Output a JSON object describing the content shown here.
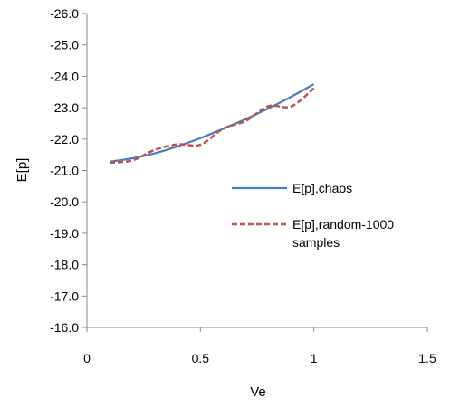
{
  "chart_data": {
    "type": "line",
    "xlabel": "Ve",
    "ylabel": "E[p]",
    "xlim": [
      0,
      1.5
    ],
    "ylim": [
      -26.0,
      -16.0
    ],
    "y_axis_reversed": true,
    "x_ticks": [
      "0",
      "0.5",
      "1",
      "1.5"
    ],
    "x_tick_values": [
      0,
      0.5,
      1,
      1.5
    ],
    "y_ticks": [
      "-26.0",
      "-25.0",
      "-24.0",
      "-23.0",
      "-22.0",
      "-21.0",
      "-20.0",
      "-19.0",
      "-18.0",
      "-17.0",
      "-16.0"
    ],
    "y_tick_values": [
      -26,
      -25,
      -24,
      -23,
      -22,
      -21,
      -20,
      -19,
      -18,
      -17,
      -16
    ],
    "grid": false,
    "legend_position": "right",
    "series": [
      {
        "name": "E[p],chaos",
        "color": "#4a7ebb",
        "style": "solid",
        "x": [
          0.1,
          0.2,
          0.3,
          0.4,
          0.5,
          0.6,
          0.7,
          0.8,
          0.9,
          1.0
        ],
        "y": [
          -21.28,
          -21.39,
          -21.55,
          -21.77,
          -22.03,
          -22.33,
          -22.64,
          -22.98,
          -23.35,
          -23.75
        ]
      },
      {
        "name": "E[p],random-1000 samples",
        "color": "#c0504d",
        "style": "dashed",
        "x": [
          0.1,
          0.2,
          0.3,
          0.4,
          0.5,
          0.6,
          0.7,
          0.8,
          0.9,
          1.0
        ],
        "y": [
          -21.25,
          -21.32,
          -21.66,
          -21.83,
          -21.82,
          -22.33,
          -22.58,
          -23.05,
          -23.04,
          -23.62
        ]
      }
    ]
  }
}
